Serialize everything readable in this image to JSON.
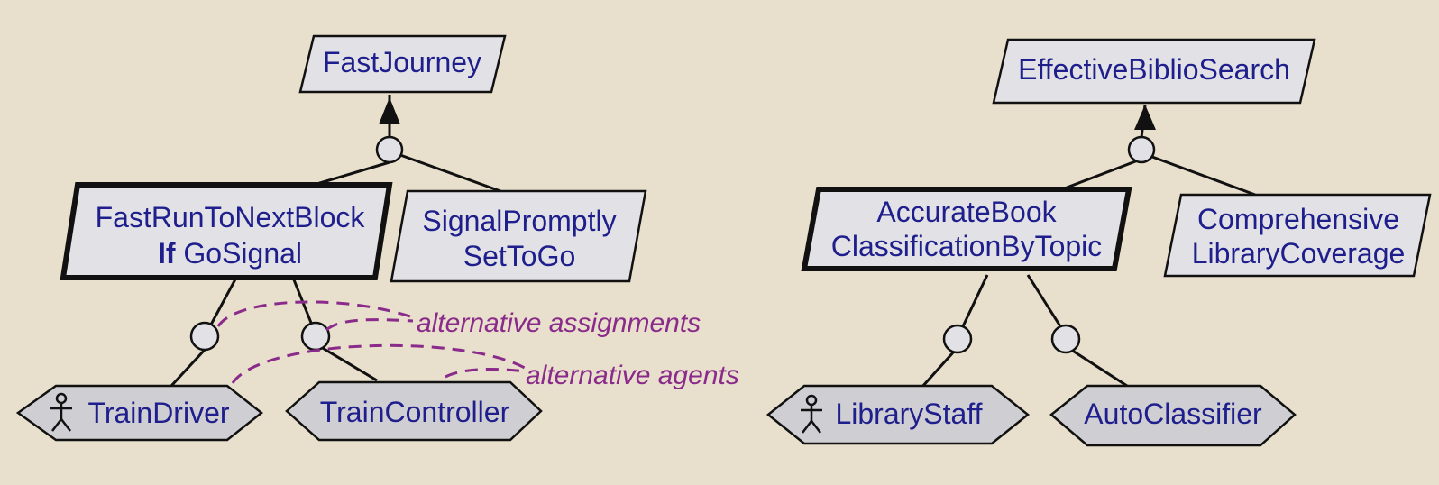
{
  "left": {
    "parent_goal": "FastJourney",
    "responsible_goal": {
      "line1": "FastRunToNextBlock",
      "keyword": "If",
      "line2_rest": "GoSignal"
    },
    "sibling_goal": {
      "line1": "SignalPromptly",
      "line2": "SetToGo"
    },
    "agents": [
      "TrainDriver",
      "TrainController"
    ],
    "annotations": [
      "alternative assignments",
      "alternative agents"
    ]
  },
  "right": {
    "parent_goal": "EffectiveBiblioSearch",
    "responsible_goal": {
      "line1": "AccurateBook",
      "line2": "ClassificationByTopic"
    },
    "sibling_goal": {
      "line1": "Comprehensive",
      "line2": "LibraryCoverage"
    },
    "agents": [
      "LibraryStaff",
      "AutoClassifier"
    ]
  }
}
